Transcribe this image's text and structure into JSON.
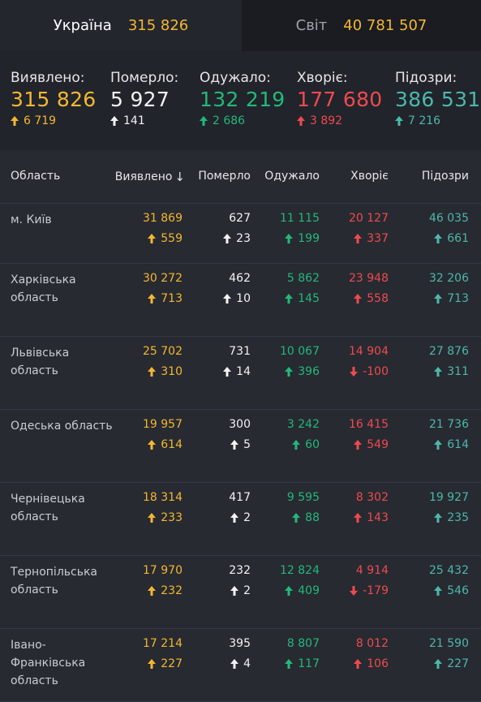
{
  "tabs": {
    "ukraine": {
      "label": "Україна",
      "value": "315 826"
    },
    "world": {
      "label": "Світ",
      "value": "40 781 507"
    }
  },
  "summary": [
    {
      "key": "detected",
      "label": "Виявлено:",
      "value": "315 826",
      "delta": "6 719",
      "color": "yellow",
      "dir": "up"
    },
    {
      "key": "died",
      "label": "Померло:",
      "value": "5 927",
      "delta": "141",
      "color": "white",
      "dir": "up"
    },
    {
      "key": "recovered",
      "label": "Одужало:",
      "value": "132 219",
      "delta": "2 686",
      "color": "green",
      "dir": "up"
    },
    {
      "key": "sick",
      "label": "Хворіє:",
      "value": "177 680",
      "delta": "3 892",
      "color": "red",
      "dir": "up"
    },
    {
      "key": "suspected",
      "label": "Підозри:",
      "value": "386 531",
      "delta": "7 216",
      "color": "teal",
      "dir": "up"
    }
  ],
  "table": {
    "headers": {
      "region": "Область",
      "detected": "Виявлено",
      "sort_arrow": "↓",
      "died": "Померло",
      "recovered": "Одужало",
      "sick": "Хворіє",
      "suspected": "Підозри"
    },
    "rows": [
      {
        "region": "м. Київ",
        "detected": {
          "v": "31 869",
          "d": "559",
          "dir": "up"
        },
        "died": {
          "v": "627",
          "d": "23",
          "dir": "up"
        },
        "recovered": {
          "v": "11 115",
          "d": "199",
          "dir": "up"
        },
        "sick": {
          "v": "20 127",
          "d": "337",
          "dir": "up"
        },
        "suspected": {
          "v": "46 035",
          "d": "661",
          "dir": "up"
        }
      },
      {
        "region": "Харківська область",
        "detected": {
          "v": "30 272",
          "d": "713",
          "dir": "up"
        },
        "died": {
          "v": "462",
          "d": "10",
          "dir": "up"
        },
        "recovered": {
          "v": "5 862",
          "d": "145",
          "dir": "up"
        },
        "sick": {
          "v": "23 948",
          "d": "558",
          "dir": "up"
        },
        "suspected": {
          "v": "32 206",
          "d": "713",
          "dir": "up"
        }
      },
      {
        "region": "Львівська область",
        "detected": {
          "v": "25 702",
          "d": "310",
          "dir": "up"
        },
        "died": {
          "v": "731",
          "d": "14",
          "dir": "up"
        },
        "recovered": {
          "v": "10 067",
          "d": "396",
          "dir": "up"
        },
        "sick": {
          "v": "14 904",
          "d": "-100",
          "dir": "down"
        },
        "suspected": {
          "v": "27 876",
          "d": "311",
          "dir": "up"
        }
      },
      {
        "region": "Одеська область",
        "detected": {
          "v": "19 957",
          "d": "614",
          "dir": "up"
        },
        "died": {
          "v": "300",
          "d": "5",
          "dir": "up"
        },
        "recovered": {
          "v": "3 242",
          "d": "60",
          "dir": "up"
        },
        "sick": {
          "v": "16 415",
          "d": "549",
          "dir": "up"
        },
        "suspected": {
          "v": "21 736",
          "d": "614",
          "dir": "up"
        }
      },
      {
        "region": "Чернівецька область",
        "detected": {
          "v": "18 314",
          "d": "233",
          "dir": "up"
        },
        "died": {
          "v": "417",
          "d": "2",
          "dir": "up"
        },
        "recovered": {
          "v": "9 595",
          "d": "88",
          "dir": "up"
        },
        "sick": {
          "v": "8 302",
          "d": "143",
          "dir": "up"
        },
        "suspected": {
          "v": "19 927",
          "d": "235",
          "dir": "up"
        }
      },
      {
        "region": "Тернопільська область",
        "detected": {
          "v": "17 970",
          "d": "232",
          "dir": "up"
        },
        "died": {
          "v": "232",
          "d": "2",
          "dir": "up"
        },
        "recovered": {
          "v": "12 824",
          "d": "409",
          "dir": "up"
        },
        "sick": {
          "v": "4 914",
          "d": "-179",
          "dir": "down"
        },
        "suspected": {
          "v": "25 432",
          "d": "546",
          "dir": "up"
        }
      },
      {
        "region": "Івано-Франківська область",
        "detected": {
          "v": "17 214",
          "d": "227",
          "dir": "up"
        },
        "died": {
          "v": "395",
          "d": "4",
          "dir": "up"
        },
        "recovered": {
          "v": "8 807",
          "d": "117",
          "dir": "up"
        },
        "sick": {
          "v": "8 012",
          "d": "106",
          "dir": "up"
        },
        "suspected": {
          "v": "21 590",
          "d": "227",
          "dir": "up"
        }
      }
    ]
  },
  "colors": {
    "yellow": "#f5b731",
    "white": "#f2f2f2",
    "green": "#23b87a",
    "red": "#ef4a4f",
    "teal": "#4db7ac"
  }
}
